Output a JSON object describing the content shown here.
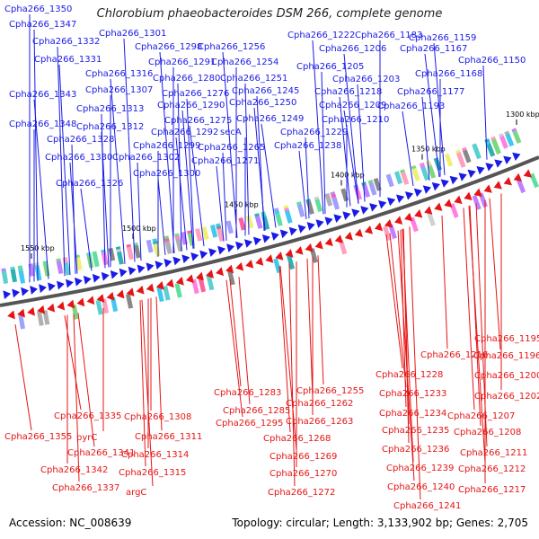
{
  "title": "Chlorobium phaeobacteroides DSM 266, complete genome",
  "footer": {
    "accession": "Accession: NC_008639",
    "topology": "Topology: circular; Length: 3,133,902 bp; Genes: 2,705"
  },
  "colors": {
    "forward": "#1a1ae6",
    "reverse": "#e61414",
    "backbone": "#555555",
    "tick_mark": "#1a8a1a"
  },
  "ticks": [
    "1300 kbp",
    "1350 kbp",
    "1400 kbp",
    "1450 kbp",
    "1500 kbp",
    "1550 kbp"
  ],
  "forward_genes": [
    "Cpha266_1350",
    "Cpha266_1347",
    "Cpha266_1332",
    "Cpha266_1331",
    "Cpha266_1343",
    "Cpha266_1348",
    "Cpha266_1328",
    "Cpha266_1330",
    "Cpha266_1326",
    "Cpha266_1316",
    "Cpha266_1307",
    "Cpha266_1313",
    "Cpha266_1312",
    "Cpha266_1301",
    "Cpha266_1298",
    "Cpha266_1291",
    "Cpha266_1280",
    "Cpha266_1276",
    "Cpha266_1290",
    "Cpha266_1275",
    "Cpha266_1299",
    "Cpha266_1302",
    "Cpha266_1300",
    "Cpha266_1292",
    "Cpha266_1256",
    "Cpha266_1254",
    "Cpha266_1251",
    "Cpha266_1245",
    "Cpha266_1250",
    "Cpha266_1249",
    "secA",
    "Cpha266_1265",
    "Cpha266_1271",
    "Cpha266_1222",
    "Cpha266_1206",
    "Cpha266_1183",
    "Cpha266_1205",
    "Cpha266_1203",
    "Cpha266_1218",
    "Cpha266_1209",
    "Cpha266_1210",
    "Cpha266_1229",
    "Cpha266_1238",
    "Cpha266_1159",
    "Cpha266_1167",
    "Cpha266_1168",
    "Cpha266_1150",
    "Cpha266_1177",
    "Cpha266_1193"
  ],
  "reverse_genes": [
    "Cpha266_1195",
    "Cpha266_1216",
    "Cpha266_1196",
    "Cpha266_1228",
    "Cpha266_1200",
    "Cpha266_1255",
    "Cpha266_1283",
    "Cpha266_1233",
    "Cpha266_1202",
    "Cpha266_1262",
    "Cpha266_1285",
    "Cpha266_1335",
    "Cpha266_1308",
    "Cpha266_1234",
    "Cpha266_1207",
    "Cpha266_1295",
    "Cpha266_1263",
    "Cpha266_1235",
    "Cpha266_1208",
    "Cpha266_1355",
    "pyrC",
    "Cpha266_1311",
    "Cpha266_1268",
    "Cpha266_1341",
    "Cpha266_1314",
    "Cpha266_1236",
    "Cpha266_1211",
    "Cpha266_1269",
    "Cpha266_1342",
    "Cpha266_1315",
    "Cpha266_1239",
    "Cpha266_1212",
    "Cpha266_1270",
    "Cpha266_1337",
    "argC",
    "Cpha266_1240",
    "Cpha266_1217",
    "Cpha266_1272",
    "Cpha266_1241"
  ]
}
